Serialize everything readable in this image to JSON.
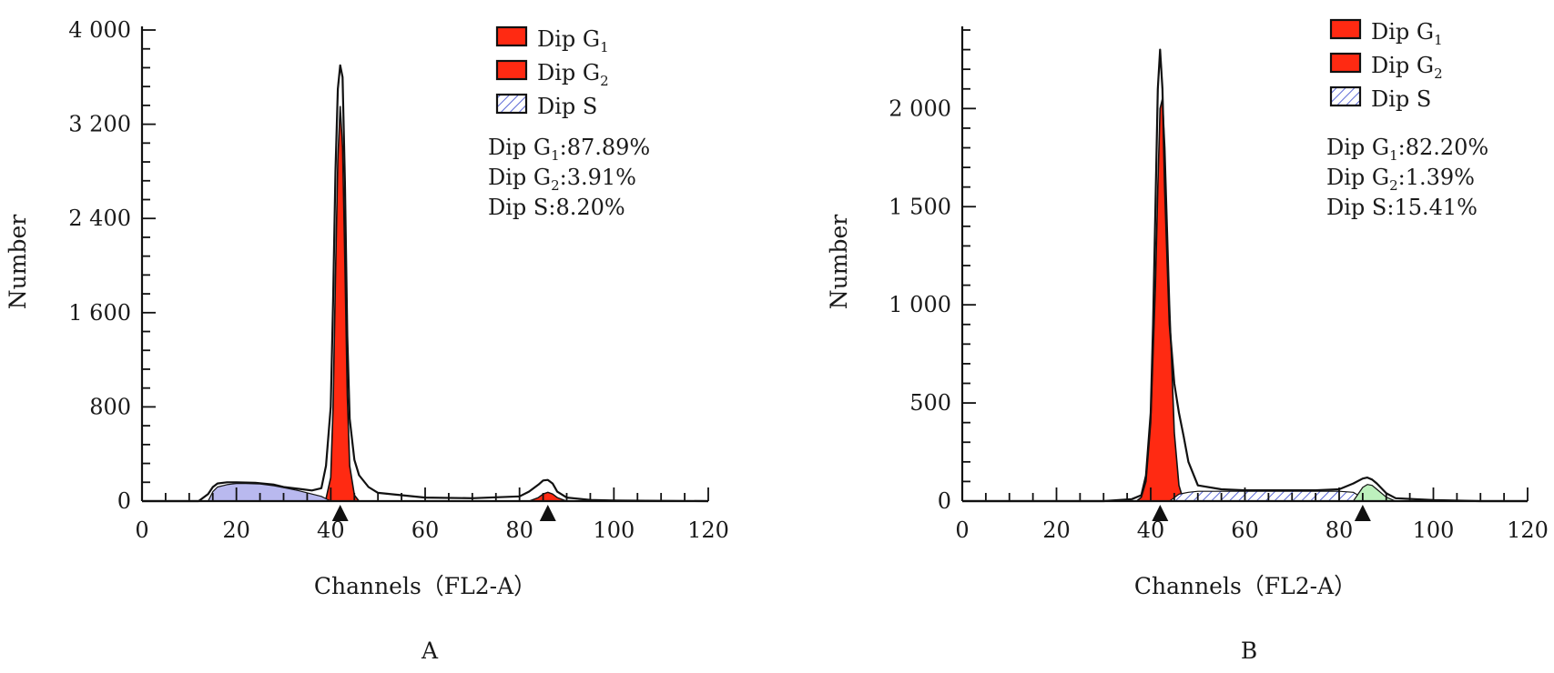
{
  "colors": {
    "g1_fill": "#ff2a12",
    "g2_fill": "#ff2a12",
    "s_fill_a": "#b9b9ef",
    "s_fill_b": "#c9d6f2",
    "g2_extra_b": "#bdf0bd",
    "outline": "#111111",
    "axis": "#111111"
  },
  "chart_data": [
    {
      "type": "area",
      "panel_label": "A",
      "xlabel": "Channels（FL2-A）",
      "ylabel": "Number",
      "xlim": [
        0,
        120
      ],
      "ylim": [
        0,
        4000
      ],
      "x_ticks": [
        "0",
        "20",
        "40",
        "60",
        "80",
        "100",
        "120"
      ],
      "y_ticks": [
        "0",
        "800",
        "1 600",
        "2 400",
        "3 200",
        "4 000"
      ],
      "y_tick_values": [
        0,
        800,
        1600,
        2400,
        3200,
        4000
      ],
      "markers_x": [
        42,
        86
      ],
      "legend": [
        {
          "label": "Dip G",
          "sub": "1",
          "swatch": "solid"
        },
        {
          "label": "Dip G",
          "sub": "2",
          "swatch": "solid"
        },
        {
          "label": "Dip S",
          "sub": "",
          "swatch": "hatched"
        }
      ],
      "stats": [
        {
          "prefix": "Dip G",
          "sub": "1",
          "value": ":87.89%"
        },
        {
          "prefix": "Dip G",
          "sub": "2",
          "value": ":3.91%"
        },
        {
          "prefix": "Dip S",
          "sub": "",
          "value": ":8.20%"
        }
      ],
      "series": [
        {
          "name": "Dip G1",
          "style": "g1",
          "x": [
            38,
            39,
            40,
            40.5,
            41,
            41.5,
            42,
            42.5,
            43,
            43.5,
            44,
            45,
            46
          ],
          "y": [
            0,
            20,
            200,
            800,
            1900,
            2900,
            3350,
            3000,
            2000,
            900,
            300,
            50,
            0
          ]
        },
        {
          "name": "Dip G2",
          "style": "g2",
          "x": [
            82,
            84,
            85,
            86,
            87,
            88,
            90
          ],
          "y": [
            0,
            30,
            60,
            75,
            60,
            30,
            0
          ]
        },
        {
          "name": "Dip S",
          "style": "s_a",
          "x": [
            14,
            15,
            16,
            18,
            20,
            22,
            25,
            28,
            30,
            33,
            36,
            38,
            39,
            40
          ],
          "y": [
            0,
            80,
            120,
            140,
            150,
            150,
            145,
            130,
            115,
            90,
            60,
            40,
            20,
            0
          ]
        },
        {
          "name": "Total",
          "style": "outline",
          "x": [
            0,
            12,
            14,
            15,
            16,
            18,
            20,
            24,
            28,
            30,
            34,
            36,
            38,
            39,
            40,
            40.5,
            41,
            41.5,
            42,
            42.5,
            43,
            43.5,
            44,
            45,
            46,
            48,
            50,
            55,
            60,
            70,
            80,
            82,
            84,
            85,
            86,
            87,
            88,
            90,
            95,
            100,
            120
          ],
          "y": [
            0,
            0,
            60,
            120,
            150,
            160,
            160,
            155,
            140,
            120,
            100,
            90,
            110,
            300,
            800,
            1700,
            2800,
            3500,
            3700,
            3600,
            2700,
            1400,
            700,
            350,
            220,
            120,
            70,
            50,
            30,
            25,
            40,
            80,
            140,
            175,
            180,
            150,
            80,
            30,
            10,
            5,
            0
          ]
        }
      ]
    },
    {
      "type": "area",
      "panel_label": "B",
      "xlabel": "Channels（FL2-A）",
      "ylabel": "Number",
      "xlim": [
        0,
        120
      ],
      "ylim": [
        0,
        2400
      ],
      "x_ticks": [
        "0",
        "20",
        "40",
        "60",
        "80",
        "100",
        "120"
      ],
      "y_ticks": [
        "0",
        "500",
        "1 000",
        "1 500",
        "2 000"
      ],
      "y_tick_values": [
        0,
        500,
        1000,
        1500,
        2000
      ],
      "markers_x": [
        42,
        85
      ],
      "legend": [
        {
          "label": "Dip G",
          "sub": "1",
          "swatch": "solid"
        },
        {
          "label": "Dip G",
          "sub": "2",
          "swatch": "solid"
        },
        {
          "label": "Dip S",
          "sub": "",
          "swatch": "hatched"
        }
      ],
      "stats": [
        {
          "prefix": "Dip G",
          "sub": "1",
          "value": ":82.20%"
        },
        {
          "prefix": "Dip G",
          "sub": "2",
          "value": ":1.39%"
        },
        {
          "prefix": "Dip S",
          "sub": "",
          "value": ":15.41%"
        }
      ],
      "series": [
        {
          "name": "Dip G1",
          "style": "g1",
          "x": [
            37,
            38,
            39,
            40,
            41,
            41.5,
            42,
            42.5,
            43,
            44,
            45,
            46,
            47
          ],
          "y": [
            0,
            20,
            100,
            400,
            1100,
            1600,
            2000,
            2050,
            1800,
            1000,
            350,
            80,
            0
          ]
        },
        {
          "name": "Dip G2",
          "style": "g2_b",
          "x": [
            81,
            83,
            84,
            85,
            86,
            87,
            89
          ],
          "y": [
            0,
            20,
            30,
            35,
            30,
            20,
            0
          ]
        },
        {
          "name": "Dip S",
          "style": "s_b",
          "x": [
            44,
            46,
            48,
            50,
            55,
            60,
            65,
            70,
            75,
            80,
            83,
            84,
            85
          ],
          "y": [
            0,
            35,
            45,
            50,
            50,
            50,
            50,
            50,
            50,
            50,
            45,
            30,
            0
          ]
        },
        {
          "name": "Extra",
          "style": "extra_b",
          "x": [
            83,
            85,
            86,
            87,
            88,
            90,
            92
          ],
          "y": [
            0,
            70,
            85,
            80,
            60,
            20,
            0
          ]
        },
        {
          "name": "Total",
          "style": "outline",
          "x": [
            0,
            30,
            36,
            38,
            39,
            40,
            40.5,
            41,
            41.5,
            42,
            42.5,
            43,
            44,
            45,
            46,
            47,
            48,
            50,
            55,
            60,
            65,
            70,
            75,
            80,
            83,
            85,
            86,
            87,
            88,
            90,
            92,
            100,
            110,
            120
          ],
          "y": [
            0,
            0,
            10,
            30,
            130,
            450,
            900,
            1500,
            2100,
            2300,
            2100,
            1600,
            900,
            600,
            450,
            330,
            200,
            80,
            60,
            55,
            55,
            55,
            55,
            60,
            90,
            115,
            120,
            110,
            90,
            40,
            15,
            5,
            0,
            0
          ]
        }
      ]
    }
  ]
}
